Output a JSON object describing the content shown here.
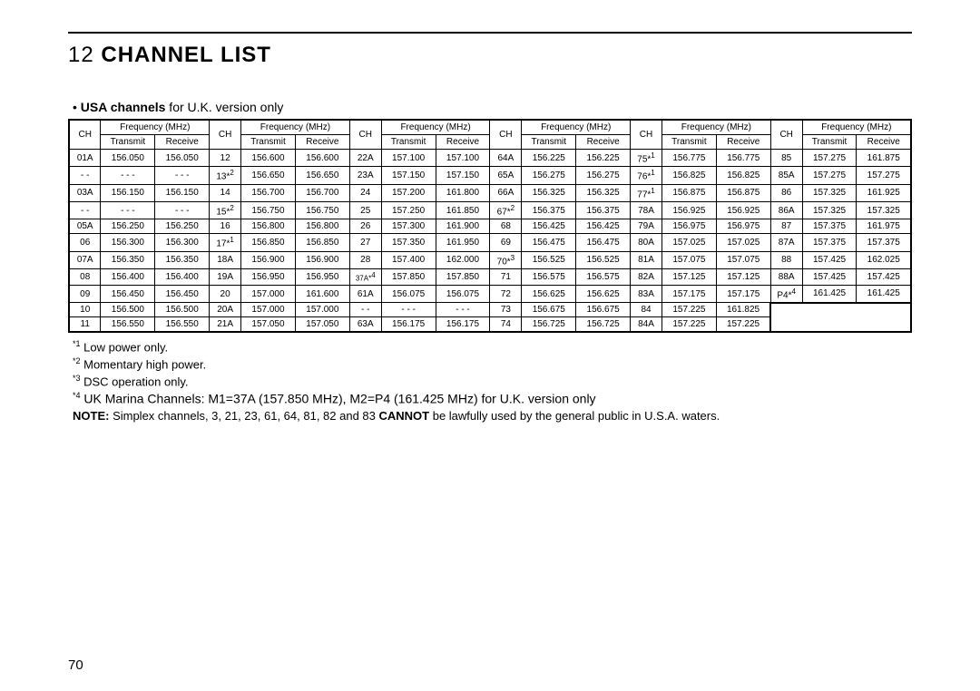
{
  "section_number": "12",
  "section_title": "CHANNEL LIST",
  "subtitle_bullet": "•",
  "subtitle_bold": "USA channels",
  "subtitle_rest": " for U.K. version only",
  "header_ch": "CH",
  "header_freq": "Frequency (MHz)",
  "header_tx": "Transmit",
  "header_rx": "Receive",
  "block_count": 6,
  "row_count": 11,
  "rows": [
    [
      {
        "ch": "01A",
        "tx": "156.050",
        "rx": "156.050"
      },
      {
        "ch": "12",
        "tx": "156.600",
        "rx": "156.600"
      },
      {
        "ch": "22A",
        "tx": "157.100",
        "rx": "157.100"
      },
      {
        "ch": "64A",
        "tx": "156.225",
        "rx": "156.225"
      },
      {
        "ch": "75*",
        "sup": "1",
        "tx": "156.775",
        "rx": "156.775"
      },
      {
        "ch": "85",
        "tx": "157.275",
        "rx": "161.875"
      }
    ],
    [
      {
        "ch": "- -",
        "tx": "- - -",
        "rx": "- - -"
      },
      {
        "ch": "13*",
        "sup": "2",
        "tx": "156.650",
        "rx": "156.650"
      },
      {
        "ch": "23A",
        "tx": "157.150",
        "rx": "157.150"
      },
      {
        "ch": "65A",
        "tx": "156.275",
        "rx": "156.275"
      },
      {
        "ch": "76*",
        "sup": "1",
        "tx": "156.825",
        "rx": "156.825"
      },
      {
        "ch": "85A",
        "tx": "157.275",
        "rx": "157.275"
      }
    ],
    [
      {
        "ch": "03A",
        "tx": "156.150",
        "rx": "156.150"
      },
      {
        "ch": "14",
        "tx": "156.700",
        "rx": "156.700"
      },
      {
        "ch": "24",
        "tx": "157.200",
        "rx": "161.800"
      },
      {
        "ch": "66A",
        "tx": "156.325",
        "rx": "156.325"
      },
      {
        "ch": "77*",
        "sup": "1",
        "tx": "156.875",
        "rx": "156.875"
      },
      {
        "ch": "86",
        "tx": "157.325",
        "rx": "161.925"
      }
    ],
    [
      {
        "ch": "- -",
        "tx": "- - -",
        "rx": "- - -"
      },
      {
        "ch": "15*",
        "sup": "2",
        "tx": "156.750",
        "rx": "156.750"
      },
      {
        "ch": "25",
        "tx": "157.250",
        "rx": "161.850"
      },
      {
        "ch": "67*",
        "sup": "2",
        "tx": "156.375",
        "rx": "156.375"
      },
      {
        "ch": "78A",
        "tx": "156.925",
        "rx": "156.925"
      },
      {
        "ch": "86A",
        "tx": "157.325",
        "rx": "157.325"
      }
    ],
    [
      {
        "ch": "05A",
        "tx": "156.250",
        "rx": "156.250"
      },
      {
        "ch": "16",
        "tx": "156.800",
        "rx": "156.800"
      },
      {
        "ch": "26",
        "tx": "157.300",
        "rx": "161.900"
      },
      {
        "ch": "68",
        "tx": "156.425",
        "rx": "156.425"
      },
      {
        "ch": "79A",
        "tx": "156.975",
        "rx": "156.975"
      },
      {
        "ch": "87",
        "tx": "157.375",
        "rx": "161.975"
      }
    ],
    [
      {
        "ch": "06",
        "tx": "156.300",
        "rx": "156.300"
      },
      {
        "ch": "17*",
        "sup": "1",
        "tx": "156.850",
        "rx": "156.850"
      },
      {
        "ch": "27",
        "tx": "157.350",
        "rx": "161.950"
      },
      {
        "ch": "69",
        "tx": "156.475",
        "rx": "156.475"
      },
      {
        "ch": "80A",
        "tx": "157.025",
        "rx": "157.025"
      },
      {
        "ch": "87A",
        "tx": "157.375",
        "rx": "157.375"
      }
    ],
    [
      {
        "ch": "07A",
        "tx": "156.350",
        "rx": "156.350"
      },
      {
        "ch": "18A",
        "tx": "156.900",
        "rx": "156.900"
      },
      {
        "ch": "28",
        "tx": "157.400",
        "rx": "162.000"
      },
      {
        "ch": "70*",
        "sup": "3",
        "tx": "156.525",
        "rx": "156.525"
      },
      {
        "ch": "81A",
        "tx": "157.075",
        "rx": "157.075"
      },
      {
        "ch": "88",
        "tx": "157.425",
        "rx": "162.025"
      }
    ],
    [
      {
        "ch": "08",
        "tx": "156.400",
        "rx": "156.400"
      },
      {
        "ch": "19A",
        "tx": "156.950",
        "rx": "156.950"
      },
      {
        "ch": "37A*",
        "sup": "4",
        "chsmall": true,
        "tx": "157.850",
        "rx": "157.850"
      },
      {
        "ch": "71",
        "tx": "156.575",
        "rx": "156.575"
      },
      {
        "ch": "82A",
        "tx": "157.125",
        "rx": "157.125"
      },
      {
        "ch": "88A",
        "tx": "157.425",
        "rx": "157.425"
      }
    ],
    [
      {
        "ch": "09",
        "tx": "156.450",
        "rx": "156.450"
      },
      {
        "ch": "20",
        "tx": "157.000",
        "rx": "161.600"
      },
      {
        "ch": "61A",
        "tx": "156.075",
        "rx": "156.075"
      },
      {
        "ch": "72",
        "tx": "156.625",
        "rx": "156.625"
      },
      {
        "ch": "83A",
        "tx": "157.175",
        "rx": "157.175"
      },
      {
        "ch": "P4*",
        "sup": "4",
        "tx": "161.425",
        "rx": "161.425"
      }
    ],
    [
      {
        "ch": "10",
        "tx": "156.500",
        "rx": "156.500"
      },
      {
        "ch": "20A",
        "tx": "157.000",
        "rx": "157.000"
      },
      {
        "ch": "- -",
        "tx": "- - -",
        "rx": "- - -"
      },
      {
        "ch": "73",
        "tx": "156.675",
        "rx": "156.675"
      },
      {
        "ch": "84",
        "tx": "157.225",
        "rx": "161.825"
      },
      {
        "blank": true
      }
    ],
    [
      {
        "ch": "11",
        "tx": "156.550",
        "rx": "156.550"
      },
      {
        "ch": "21A",
        "tx": "157.050",
        "rx": "157.050"
      },
      {
        "ch": "63A",
        "tx": "156.175",
        "rx": "156.175"
      },
      {
        "ch": "74",
        "tx": "156.725",
        "rx": "156.725"
      },
      {
        "ch": "84A",
        "tx": "157.225",
        "rx": "157.225"
      },
      {
        "blank": true
      }
    ]
  ],
  "note1_sup": "*1",
  "note1_text": " Low power only.",
  "note2_sup": "*2",
  "note2_text": " Momentary high power.",
  "note3_sup": "*3",
  "note3_text": " DSC operation only.",
  "note4_sup": "*4",
  "note4_text": " UK Marina Channels: M1=37A (157.850 MHz), M2=P4 (161.425 MHz) for U.K. version only",
  "note_bold": "NOTE:",
  "note_text_a": " Simplex channels, 3, 21, 23, 61, 64, 81, 82 and 83 ",
  "note_cannot": "CANNOT",
  "note_text_b": " be lawfully used by the general public in U.S.A. waters.",
  "page_number": "70"
}
